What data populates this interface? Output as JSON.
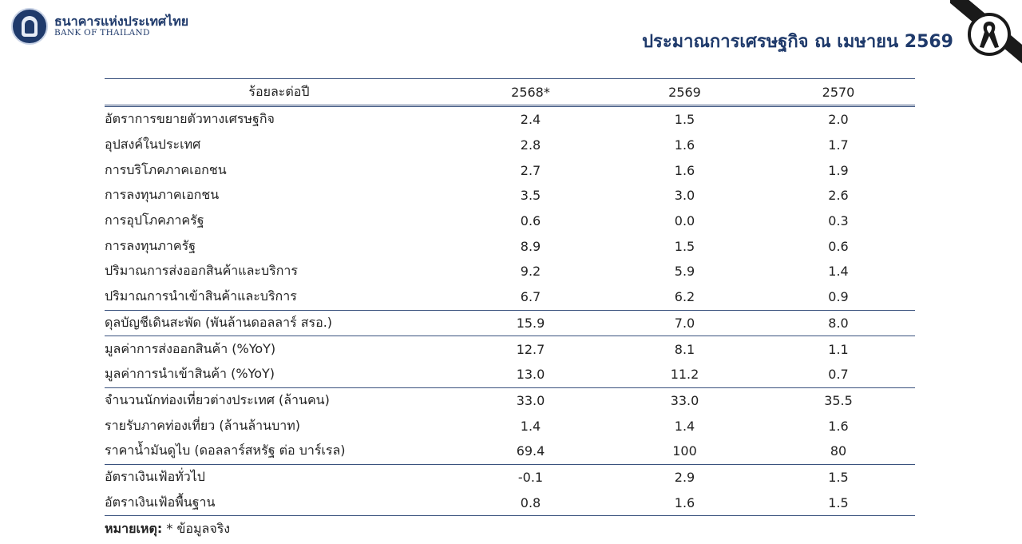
{
  "header": {
    "logo_thai": "ธนาคารแห่งประเทศไทย",
    "logo_english": "BANK OF THAILAND",
    "title": "ประมาณการเศรษฐกิจ ณ เมษายน 2569"
  },
  "colors": {
    "brand_navy": "#1f3a6b",
    "rule_blue": "#3a527e",
    "mourning_black": "#1a1a1a"
  },
  "icons": {
    "logo": "bank-of-thailand-seal-icon",
    "ribbon": "mourning-ribbon-icon"
  },
  "table": {
    "columns": [
      "ร้อยละต่อปี",
      "2568*",
      "2569",
      "2570"
    ],
    "rows": [
      {
        "label": "อัตราการขยายตัวทางเศรษฐกิจ",
        "values": [
          "2.4",
          "1.5",
          "2.0"
        ]
      },
      {
        "label": "อุปสงค์ในประเทศ",
        "values": [
          "2.8",
          "1.6",
          "1.7"
        ]
      },
      {
        "label": "การบริโภคภาคเอกชน",
        "values": [
          "2.7",
          "1.6",
          "1.9"
        ]
      },
      {
        "label": "การลงทุนภาคเอกชน",
        "values": [
          "3.5",
          "3.0",
          "2.6"
        ]
      },
      {
        "label": "การอุปโภคภาครัฐ",
        "values": [
          "0.6",
          "0.0",
          "0.3"
        ]
      },
      {
        "label": "การลงทุนภาครัฐ",
        "values": [
          "8.9",
          "1.5",
          "0.6"
        ]
      },
      {
        "label": "ปริมาณการส่งออกสินค้าและบริการ",
        "values": [
          "9.2",
          "5.9",
          "1.4"
        ]
      },
      {
        "label": "ปริมาณการนำเข้าสินค้าและบริการ",
        "values": [
          "6.7",
          "6.2",
          "0.9"
        ]
      },
      {
        "label": "ดุลบัญชีเดินสะพัด (พันล้านดอลลาร์ สรอ.)",
        "values": [
          "15.9",
          "7.0",
          "8.0"
        ]
      },
      {
        "label": "มูลค่าการส่งออกสินค้า (%YoY)",
        "values": [
          "12.7",
          "8.1",
          "1.1"
        ]
      },
      {
        "label": "มูลค่าการนำเข้าสินค้า (%YoY)",
        "values": [
          "13.0",
          "11.2",
          "0.7"
        ]
      },
      {
        "label": "จำนวนนักท่องเที่ยวต่างประเทศ (ล้านคน)",
        "values": [
          "33.0",
          "33.0",
          "35.5"
        ]
      },
      {
        "label": "รายรับภาคท่องเที่ยว (ล้านล้านบาท)",
        "values": [
          "1.4",
          "1.4",
          "1.6"
        ]
      },
      {
        "label": "ราคาน้ำมันดูไบ (ดอลลาร์สหรัฐ ต่อ บาร์เรล)",
        "values": [
          "69.4",
          "100",
          "80"
        ]
      },
      {
        "label": "อัตราเงินเฟ้อทั่วไป",
        "values": [
          "-0.1",
          "2.9",
          "1.5"
        ]
      },
      {
        "label": "อัตราเงินเฟ้อพื้นฐาน",
        "values": [
          "0.8",
          "1.6",
          "1.5"
        ]
      }
    ]
  },
  "footnote": {
    "label": "หมายเหตุ:",
    "text": " * ข้อมูลจริง"
  }
}
